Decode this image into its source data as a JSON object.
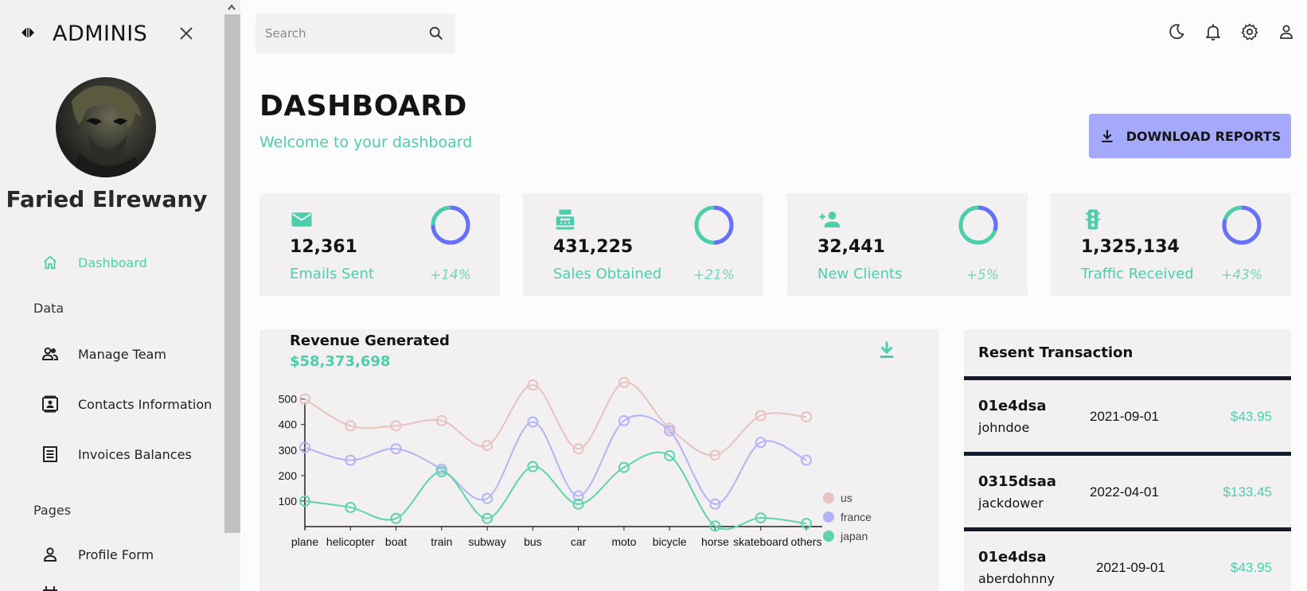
{
  "sidebar": {
    "brand": "ADMINIS",
    "user_name": "Faried Elrewany",
    "items": [
      {
        "label": "Dashboard"
      },
      {
        "label": "Manage Team"
      },
      {
        "label": "Contacts Information"
      },
      {
        "label": "Invoices Balances"
      },
      {
        "label": "Profile Form"
      }
    ],
    "sections": [
      "Data",
      "Pages"
    ]
  },
  "search": {
    "placeholder": "Search"
  },
  "header": {
    "title": "DASHBOARD",
    "subtitle": "Welcome to your dashboard",
    "download_label": "DOWNLOAD REPORTS"
  },
  "stats": [
    {
      "value": "12,361",
      "label": "Emails Sent",
      "increase": "+14%",
      "progress": 0.75,
      "icon": "email-icon"
    },
    {
      "value": "431,225",
      "label": "Sales Obtained",
      "increase": "+21%",
      "progress": 0.5,
      "icon": "point-of-sale-icon"
    },
    {
      "value": "32,441",
      "label": "New Clients",
      "increase": "+5%",
      "progress": 0.3,
      "icon": "person-add-icon"
    },
    {
      "value": "1,325,134",
      "label": "Traffic Received",
      "increase": "+43%",
      "progress": 0.8,
      "icon": "traffic-icon"
    }
  ],
  "revenue": {
    "title": "Revenue Generated",
    "amount": "$58,373,698"
  },
  "transactions": {
    "title": "Resent Transaction",
    "rows": [
      {
        "txId": "01e4dsa",
        "user": "johndoe",
        "date": "2021-09-01",
        "cost": "$43.95"
      },
      {
        "txId": "0315dsaa",
        "user": "jackdower",
        "date": "2022-04-01",
        "cost": "$133.45"
      },
      {
        "txId": "01e4dsa",
        "user": "aberdohnny",
        "date": "2021-09-01",
        "cost": "$43.95"
      }
    ]
  },
  "colors": {
    "accent": "#4cceac",
    "indigo": "#a4a9fc",
    "ring_primary": "#6870fa",
    "us": "#e8c1c1",
    "france": "#b1b4f8",
    "japan": "#5fd4ac"
  },
  "chart_data": {
    "type": "line",
    "categories": [
      "plane",
      "helicopter",
      "boat",
      "train",
      "subway",
      "bus",
      "car",
      "moto",
      "bicycle",
      "horse",
      "skateboard",
      "others"
    ],
    "ylim": [
      0,
      580
    ],
    "yticks": [
      "100",
      "200",
      "300",
      "400",
      "500"
    ],
    "legend_position": "right",
    "series": [
      {
        "name": "us",
        "values": [
          500,
          395,
          395,
          415,
          318,
          555,
          305,
          565,
          385,
          280,
          435,
          430
        ]
      },
      {
        "name": "france",
        "values": [
          310,
          260,
          305,
          225,
          110,
          410,
          120,
          415,
          375,
          88,
          330,
          260
        ]
      },
      {
        "name": "japan",
        "values": [
          100,
          75,
          32,
          215,
          32,
          235,
          88,
          232,
          278,
          2,
          34,
          12
        ]
      }
    ]
  }
}
